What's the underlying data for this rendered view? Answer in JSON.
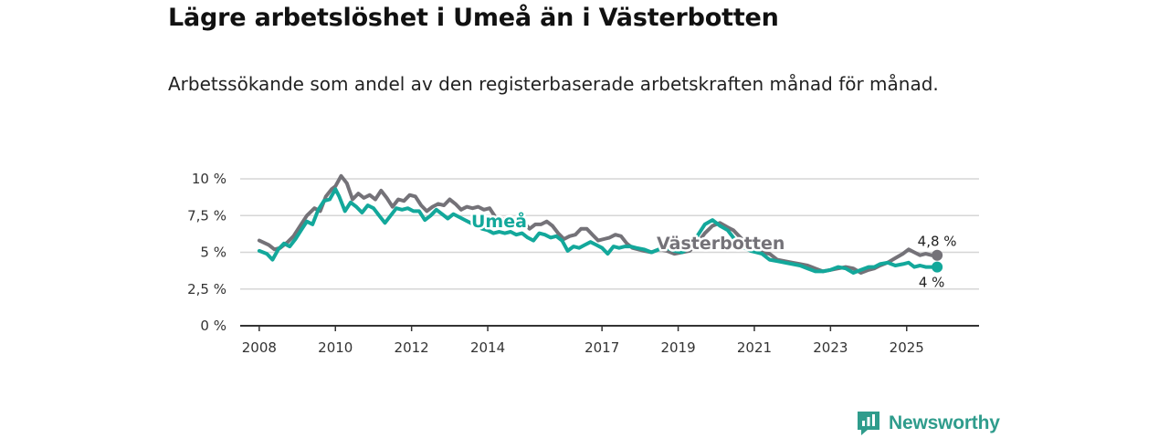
{
  "title": "Lägre arbetslöshet i Umeå än i Västerbotten",
  "subtitle": "Arbetssökande som andel av den registerbaserade arbetskraften månad för månad.",
  "brand": "Newsworthy",
  "colors": {
    "umea": "#13a89b",
    "vasterbotten": "#747278",
    "grid": "#d6d6d6",
    "axis": "#333333"
  },
  "chart_data": {
    "type": "line",
    "title": "Lägre arbetslöshet i Umeå än i Västerbotten",
    "xlabel": "",
    "ylabel": "",
    "ylim": [
      0,
      10
    ],
    "xlim": [
      2007.5,
      2026.9
    ],
    "y_ticks": [
      0,
      2.5,
      5,
      7.5,
      10
    ],
    "y_tick_labels": [
      "0 %",
      "2,5 %",
      "5 %",
      "7,5 %",
      "10 %"
    ],
    "x_ticks": [
      2008,
      2010,
      2012,
      2014,
      2017,
      2019,
      2021,
      2023,
      2025
    ],
    "x_tick_labels": [
      "2008",
      "2010",
      "2012",
      "2014",
      "2017",
      "2019",
      "2021",
      "2023",
      "2025"
    ],
    "series": [
      {
        "name": "Västerbotten",
        "color": "#747278",
        "label": "Västerbotten",
        "end_label": "4,8 %",
        "x": [
          2008.0,
          2008.25,
          2008.4,
          2008.55,
          2008.75,
          2008.9,
          2009.1,
          2009.25,
          2009.45,
          2009.6,
          2009.75,
          2009.9,
          2010.0,
          2010.15,
          2010.3,
          2010.45,
          2010.6,
          2010.75,
          2010.9,
          2011.05,
          2011.2,
          2011.35,
          2011.5,
          2011.65,
          2011.8,
          2011.95,
          2012.1,
          2012.25,
          2012.4,
          2012.55,
          2012.7,
          2012.85,
          2013.0,
          2013.15,
          2013.3,
          2013.45,
          2013.6,
          2013.75,
          2013.9,
          2014.05,
          2014.2,
          2014.35,
          2014.5,
          2014.65,
          2014.8,
          2014.95,
          2015.1,
          2015.25,
          2015.4,
          2015.55,
          2015.7,
          2015.85,
          2016.0,
          2016.15,
          2016.3,
          2016.45,
          2016.6,
          2016.75,
          2016.9,
          2017.05,
          2017.2,
          2017.35,
          2017.5,
          2017.65,
          2017.8,
          2017.95,
          2018.1,
          2018.3,
          2018.5,
          2018.7,
          2018.9,
          2019.1,
          2019.3,
          2019.5,
          2019.7,
          2019.9,
          2020.1,
          2020.3,
          2020.45,
          2020.6,
          2020.75,
          2020.9,
          2021.05,
          2021.2,
          2021.4,
          2021.6,
          2021.8,
          2022.0,
          2022.2,
          2022.4,
          2022.6,
          2022.8,
          2023.0,
          2023.2,
          2023.4,
          2023.6,
          2023.8,
          2024.0,
          2024.15,
          2024.3,
          2024.5,
          2024.7,
          2024.9,
          2025.05,
          2025.2,
          2025.35,
          2025.5,
          2025.65,
          2025.8
        ],
        "values": [
          5.8,
          5.5,
          5.2,
          5.3,
          5.7,
          6.1,
          6.9,
          7.5,
          8.0,
          7.8,
          8.8,
          9.3,
          9.5,
          10.2,
          9.7,
          8.6,
          9.0,
          8.7,
          8.9,
          8.6,
          9.2,
          8.7,
          8.1,
          8.6,
          8.5,
          8.9,
          8.8,
          8.2,
          7.8,
          8.1,
          8.3,
          8.2,
          8.6,
          8.3,
          7.9,
          8.1,
          8.0,
          8.1,
          7.9,
          8.0,
          7.4,
          7.3,
          7.2,
          7.1,
          7.4,
          7.0,
          6.6,
          6.9,
          6.9,
          7.1,
          6.8,
          6.3,
          5.9,
          6.1,
          6.2,
          6.6,
          6.6,
          6.2,
          5.8,
          5.9,
          6.0,
          6.2,
          6.1,
          5.6,
          5.3,
          5.2,
          5.1,
          5.0,
          5.2,
          5.1,
          4.9,
          5.0,
          5.1,
          5.6,
          6.3,
          6.8,
          7.0,
          6.7,
          6.5,
          6.1,
          5.7,
          5.4,
          5.1,
          5.0,
          4.9,
          4.5,
          4.4,
          4.3,
          4.2,
          4.1,
          3.9,
          3.7,
          3.8,
          3.9,
          4.0,
          3.9,
          3.6,
          3.8,
          3.9,
          4.1,
          4.3,
          4.6,
          4.9,
          5.2,
          5.0,
          4.8,
          4.9,
          4.8,
          4.8
        ]
      },
      {
        "name": "Umeå",
        "color": "#13a89b",
        "label": "Umeå",
        "end_label": "4 %",
        "x": [
          2008.0,
          2008.2,
          2008.35,
          2008.5,
          2008.65,
          2008.8,
          2008.95,
          2009.1,
          2009.25,
          2009.4,
          2009.55,
          2009.7,
          2009.85,
          2010.0,
          2010.1,
          2010.25,
          2010.4,
          2010.55,
          2010.7,
          2010.85,
          2011.0,
          2011.15,
          2011.3,
          2011.45,
          2011.6,
          2011.75,
          2011.9,
          2012.05,
          2012.2,
          2012.35,
          2012.5,
          2012.65,
          2012.8,
          2012.95,
          2013.1,
          2013.25,
          2013.4,
          2013.55,
          2013.7,
          2013.85,
          2014.0,
          2014.15,
          2014.3,
          2014.45,
          2014.6,
          2014.75,
          2014.9,
          2015.05,
          2015.2,
          2015.35,
          2015.5,
          2015.65,
          2015.8,
          2015.95,
          2016.1,
          2016.25,
          2016.4,
          2016.55,
          2016.7,
          2016.85,
          2017.0,
          2017.15,
          2017.3,
          2017.45,
          2017.6,
          2017.75,
          2017.9,
          2018.1,
          2018.3,
          2018.5,
          2018.7,
          2018.9,
          2019.1,
          2019.3,
          2019.5,
          2019.7,
          2019.9,
          2020.1,
          2020.3,
          2020.45,
          2020.6,
          2020.75,
          2020.9,
          2021.05,
          2021.2,
          2021.4,
          2021.6,
          2021.8,
          2022.0,
          2022.2,
          2022.4,
          2022.6,
          2022.8,
          2023.0,
          2023.2,
          2023.4,
          2023.6,
          2023.8,
          2024.0,
          2024.15,
          2024.3,
          2024.5,
          2024.7,
          2024.9,
          2025.05,
          2025.2,
          2025.35,
          2025.5,
          2025.65,
          2025.8
        ],
        "values": [
          5.1,
          4.9,
          4.5,
          5.2,
          5.6,
          5.4,
          5.9,
          6.5,
          7.1,
          6.9,
          7.9,
          8.5,
          8.6,
          9.3,
          8.8,
          7.8,
          8.4,
          8.1,
          7.7,
          8.2,
          8.0,
          7.5,
          7.0,
          7.5,
          8.0,
          7.9,
          8.0,
          7.8,
          7.8,
          7.2,
          7.5,
          7.9,
          7.6,
          7.3,
          7.6,
          7.4,
          7.2,
          7.0,
          6.8,
          6.6,
          6.5,
          6.3,
          6.4,
          6.3,
          6.4,
          6.2,
          6.3,
          6.0,
          5.8,
          6.3,
          6.2,
          6.0,
          6.1,
          5.8,
          5.1,
          5.4,
          5.3,
          5.5,
          5.7,
          5.5,
          5.3,
          4.9,
          5.4,
          5.3,
          5.4,
          5.4,
          5.3,
          5.2,
          5.0,
          5.2,
          5.3,
          5.1,
          5.0,
          5.3,
          6.1,
          6.9,
          7.2,
          6.8,
          6.5,
          6.0,
          5.6,
          5.3,
          5.1,
          5.0,
          4.9,
          4.5,
          4.4,
          4.3,
          4.2,
          4.1,
          3.9,
          3.7,
          3.7,
          3.8,
          4.0,
          3.9,
          3.6,
          3.8,
          4.0,
          4.0,
          4.2,
          4.3,
          4.1,
          4.2,
          4.3,
          4.0,
          4.1,
          4.0,
          4.0,
          4.0
        ]
      }
    ]
  }
}
